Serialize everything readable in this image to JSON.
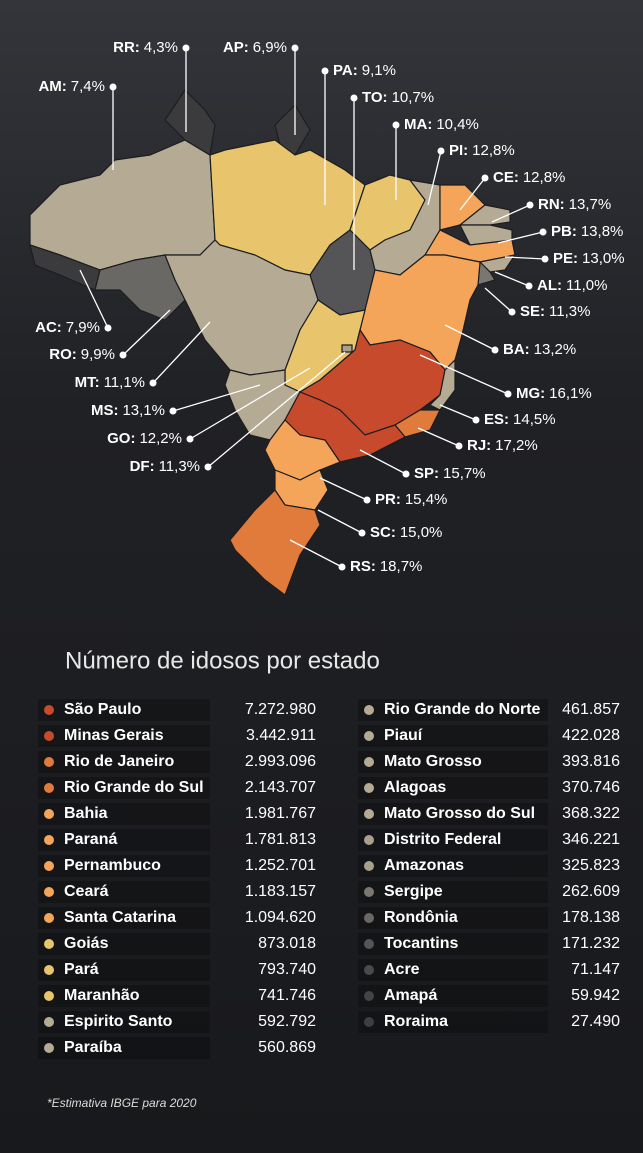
{
  "map": {
    "labels": [
      {
        "code": "RR:",
        "value": "4,3%"
      },
      {
        "code": "AP:",
        "value": "6,9%"
      },
      {
        "code": "AM:",
        "value": "7,4%"
      },
      {
        "code": "PA:",
        "value": "9,1%"
      },
      {
        "code": "TO:",
        "value": "10,7%"
      },
      {
        "code": "MA:",
        "value": "10,4%"
      },
      {
        "code": "PI:",
        "value": "12,8%"
      },
      {
        "code": "CE:",
        "value": "12,8%"
      },
      {
        "code": "RN:",
        "value": "13,7%"
      },
      {
        "code": "PB:",
        "value": "13,8%"
      },
      {
        "code": "PE:",
        "value": "13,0%"
      },
      {
        "code": "AL:",
        "value": "11,0%"
      },
      {
        "code": "SE:",
        "value": "11,3%"
      },
      {
        "code": "BA:",
        "value": "13,2%"
      },
      {
        "code": "MG:",
        "value": "16,1%"
      },
      {
        "code": "ES:",
        "value": "14,5%"
      },
      {
        "code": "RJ:",
        "value": "17,2%"
      },
      {
        "code": "SP:",
        "value": "15,7%"
      },
      {
        "code": "PR:",
        "value": "15,4%"
      },
      {
        "code": "SC:",
        "value": "15,0%"
      },
      {
        "code": "RS:",
        "value": "18,7%"
      },
      {
        "code": "AC:",
        "value": "7,9%"
      },
      {
        "code": "RO:",
        "value": "9,9%"
      },
      {
        "code": "MT:",
        "value": "11,1%"
      },
      {
        "code": "MS:",
        "value": "13,1%"
      },
      {
        "code": "GO:",
        "value": "12,2%"
      },
      {
        "code": "DF:",
        "value": "11,3%"
      }
    ]
  },
  "table": {
    "title": "Número de idosos por estado",
    "rows": [
      {
        "name": "São Paulo",
        "value": "7.272.980",
        "color": "#c84a2c"
      },
      {
        "name": "Minas Gerais",
        "value": "3.442.911",
        "color": "#c84a2c"
      },
      {
        "name": "Rio de Janeiro",
        "value": "2.993.096",
        "color": "#e07b3c"
      },
      {
        "name": "Rio Grande do Sul",
        "value": "2.143.707",
        "color": "#e07b3c"
      },
      {
        "name": "Bahia",
        "value": "1.981.767",
        "color": "#f4a55a"
      },
      {
        "name": "Paraná",
        "value": "1.781.813",
        "color": "#f4a55a"
      },
      {
        "name": "Pernambuco",
        "value": "1.252.701",
        "color": "#f4a55a"
      },
      {
        "name": "Ceará",
        "value": "1.183.157",
        "color": "#f4a55a"
      },
      {
        "name": "Santa Catarina",
        "value": "1.094.620",
        "color": "#f4a55a"
      },
      {
        "name": "Goiás",
        "value": "873.018",
        "color": "#e8c46c"
      },
      {
        "name": "Pará",
        "value": "793.740",
        "color": "#e8c46c"
      },
      {
        "name": "Maranhão",
        "value": "741.746",
        "color": "#e8c46c"
      },
      {
        "name": "Espirito Santo",
        "value": "592.792",
        "color": "#b5aa93"
      },
      {
        "name": "Paraíba",
        "value": "560.869",
        "color": "#b5aa93"
      },
      {
        "name": "Rio Grande do Norte",
        "value": "461.857",
        "color": "#b5aa93"
      },
      {
        "name": "Piauí",
        "value": "422.028",
        "color": "#b5aa93"
      },
      {
        "name": "Mato Grosso",
        "value": "393.816",
        "color": "#b5aa93"
      },
      {
        "name": "Alagoas",
        "value": "370.746",
        "color": "#b5aa93"
      },
      {
        "name": "Mato Grosso do Sul",
        "value": "368.322",
        "color": "#b5aa93"
      },
      {
        "name": "Distrito Federal",
        "value": "346.221",
        "color": "#a9a08c"
      },
      {
        "name": "Amazonas",
        "value": "325.823",
        "color": "#a9a08c"
      },
      {
        "name": "Sergipe",
        "value": "262.609",
        "color": "#7a7772"
      },
      {
        "name": "Rondônia",
        "value": "178.138",
        "color": "#6a6864"
      },
      {
        "name": "Tocantins",
        "value": "171.232",
        "color": "#555557"
      },
      {
        "name": "Acre",
        "value": "71.147",
        "color": "#4a4a4c"
      },
      {
        "name": "Amapá",
        "value": "59.942",
        "color": "#444446"
      },
      {
        "name": "Roraima",
        "value": "27.490",
        "color": "#3e3e40"
      }
    ]
  },
  "note": "*Estimativa IBGE para 2020"
}
